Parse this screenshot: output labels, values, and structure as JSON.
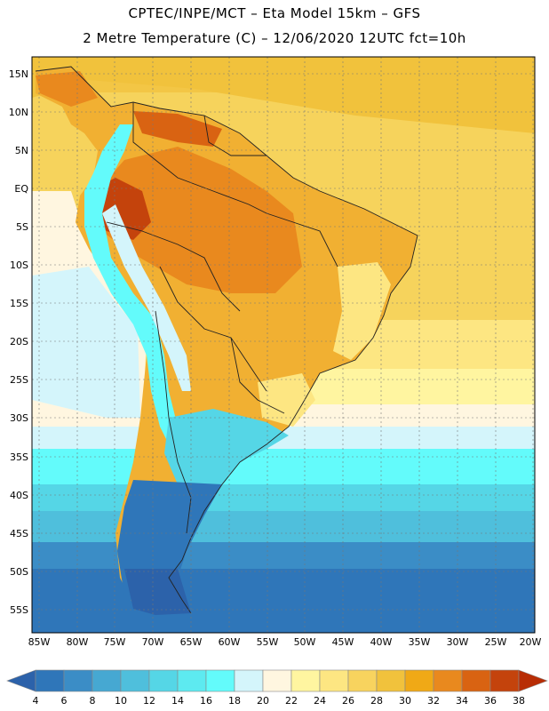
{
  "header": {
    "line1": "CPTEC/INPE/MCT –  Eta Model 15km – GFS",
    "line2": "2 Metre Temperature (C) – 12/06/2020 12UTC fct=10h"
  },
  "map": {
    "lat_labels": [
      "15N",
      "10N",
      "5N",
      "EQ",
      "5S",
      "10S",
      "15S",
      "20S",
      "25S",
      "30S",
      "35S",
      "40S",
      "45S",
      "50S",
      "55S"
    ],
    "lon_labels": [
      "85W",
      "80W",
      "75W",
      "70W",
      "65W",
      "60W",
      "55W",
      "50W",
      "45W",
      "40W",
      "35W",
      "30W",
      "25W",
      "20W"
    ]
  },
  "colorbar": {
    "ticks": [
      "4",
      "6",
      "8",
      "10",
      "12",
      "14",
      "16",
      "18",
      "20",
      "22",
      "24",
      "26",
      "28",
      "30",
      "32",
      "34",
      "36",
      "38"
    ],
    "colors": [
      "#2c62aa",
      "#2f76b9",
      "#3b8dc6",
      "#46a8d2",
      "#4fbfdc",
      "#55d6e6",
      "#5deaf0",
      "#63fbfb",
      "#d4f5fb",
      "#fff6e0",
      "#fff5a0",
      "#fde682",
      "#f8d35e",
      "#f1c23c",
      "#f0a916",
      "#e9891e",
      "#d96312",
      "#c4430c",
      "#b82d05"
    ]
  }
}
